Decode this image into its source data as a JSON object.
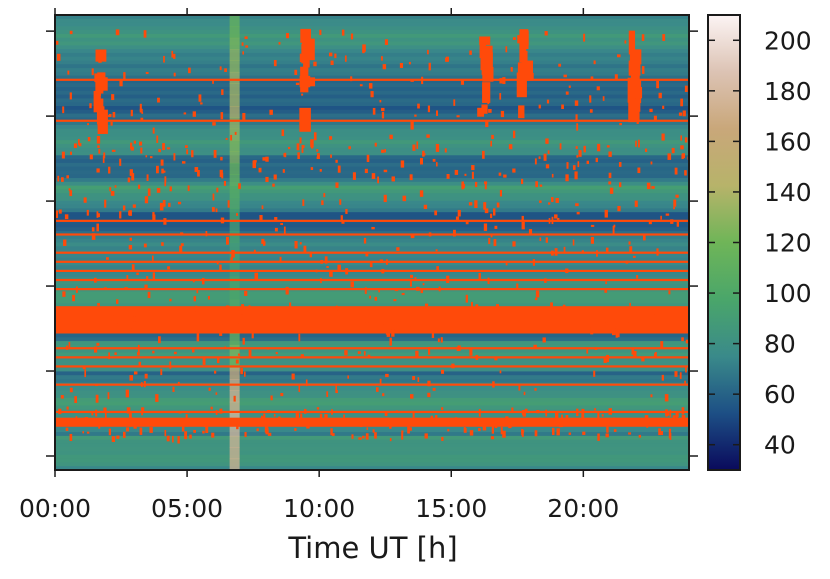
{
  "chart_data": {
    "type": "heatmap",
    "title": "",
    "xlabel": "Time UT [h]",
    "ylabel": "",
    "x_ticks": [
      "00:00",
      "05:00",
      "10:00",
      "15:00",
      "20:00"
    ],
    "x_tick_hours": [
      0,
      5,
      10,
      15,
      20
    ],
    "xlim_hours": [
      0,
      24
    ],
    "y_tick_count": 6,
    "y_tick_labels_visible": false,
    "colorbar": {
      "ticks": [
        40,
        60,
        80,
        100,
        120,
        140,
        160,
        180,
        200
      ],
      "range": [
        30,
        210
      ],
      "colormap": "gist_earth",
      "colors": [
        "#0a0a5c",
        "#1d4f85",
        "#3a8a8a",
        "#4aa66a",
        "#6fb558",
        "#b7b36a",
        "#c9a77a",
        "#dcc3b4",
        "#fcf4f4"
      ]
    },
    "saturation_color": "#ff4a0a",
    "background_value": 75,
    "features": {
      "horizontal_interference_rows_frac": [
        0.14,
        0.23,
        0.45,
        0.48,
        0.52,
        0.54,
        0.56,
        0.58,
        0.6,
        0.67,
        0.69,
        0.73,
        0.75,
        0.77,
        0.81,
        0.87
      ],
      "strong_bands_frac": [
        [
          0.64,
          0.7
        ],
        [
          0.885,
          0.905
        ]
      ],
      "vertical_bright_stripe_hour": 6.8,
      "burst_events_hours": [
        1.6,
        9.4,
        16.1,
        17.6,
        21.8
      ]
    }
  }
}
